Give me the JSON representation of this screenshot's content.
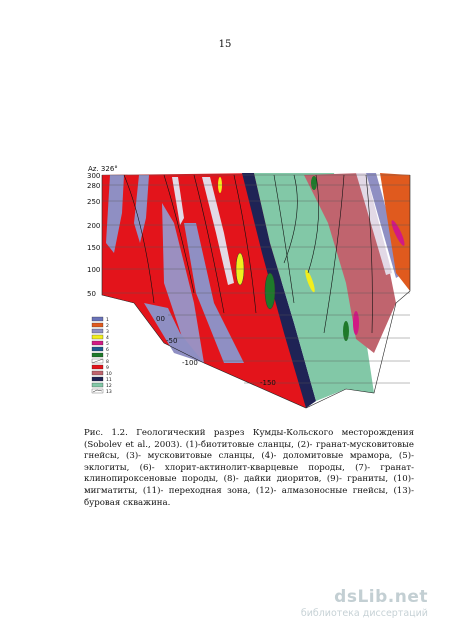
{
  "page_number": "15",
  "figure": {
    "azimuth_label": "Az. 326°",
    "left_axis_ticks": [
      "300",
      "280",
      "250",
      "200",
      "150",
      "100",
      "50"
    ],
    "inner_axis_ticks": [
      "00",
      "-50",
      "-100",
      "-150"
    ],
    "legend": [
      "1",
      "2",
      "3",
      "4",
      "5",
      "6",
      "7",
      "8",
      "9",
      "10",
      "11",
      "12",
      "13"
    ],
    "colors": {
      "granite": "#e3141b",
      "muscovite_schist": "#8f8fc3",
      "biotite_schist": "#6a73b8",
      "dolomite": "#e2d9e6",
      "transition": "#1f2355",
      "diamond_gneiss": "#82c8a7",
      "migmatite": "#c0646e",
      "garnet_muscovite": "#e05a1e",
      "magenta": "#d11a84",
      "yellow": "#f1ee1d",
      "green": "#1e7a2a"
    }
  },
  "caption": "Рис. 1.2. Геологический разрез Кумды-Кольского месторождения (Sobolev et al., 2003). (1)-биотитовые сланцы, (2)- гранат-мусковитовые гнейсы, (3)- мусковитовые сланцы, (4)- доломитовые мрамора, (5)- эклогиты, (6)- хлорит-актинолит-кварцевые породы, (7)- гранат-клинопироксеновые породы, (8)- дайки диоритов, (9)- граниты, (10)- мигматиты, (11)- переходная зона, (12)- алмазоносные гнейсы, (13)- буровая скважина.",
  "watermark": {
    "logo": "dsLib.net",
    "subtitle": "библиотека диссертаций"
  }
}
